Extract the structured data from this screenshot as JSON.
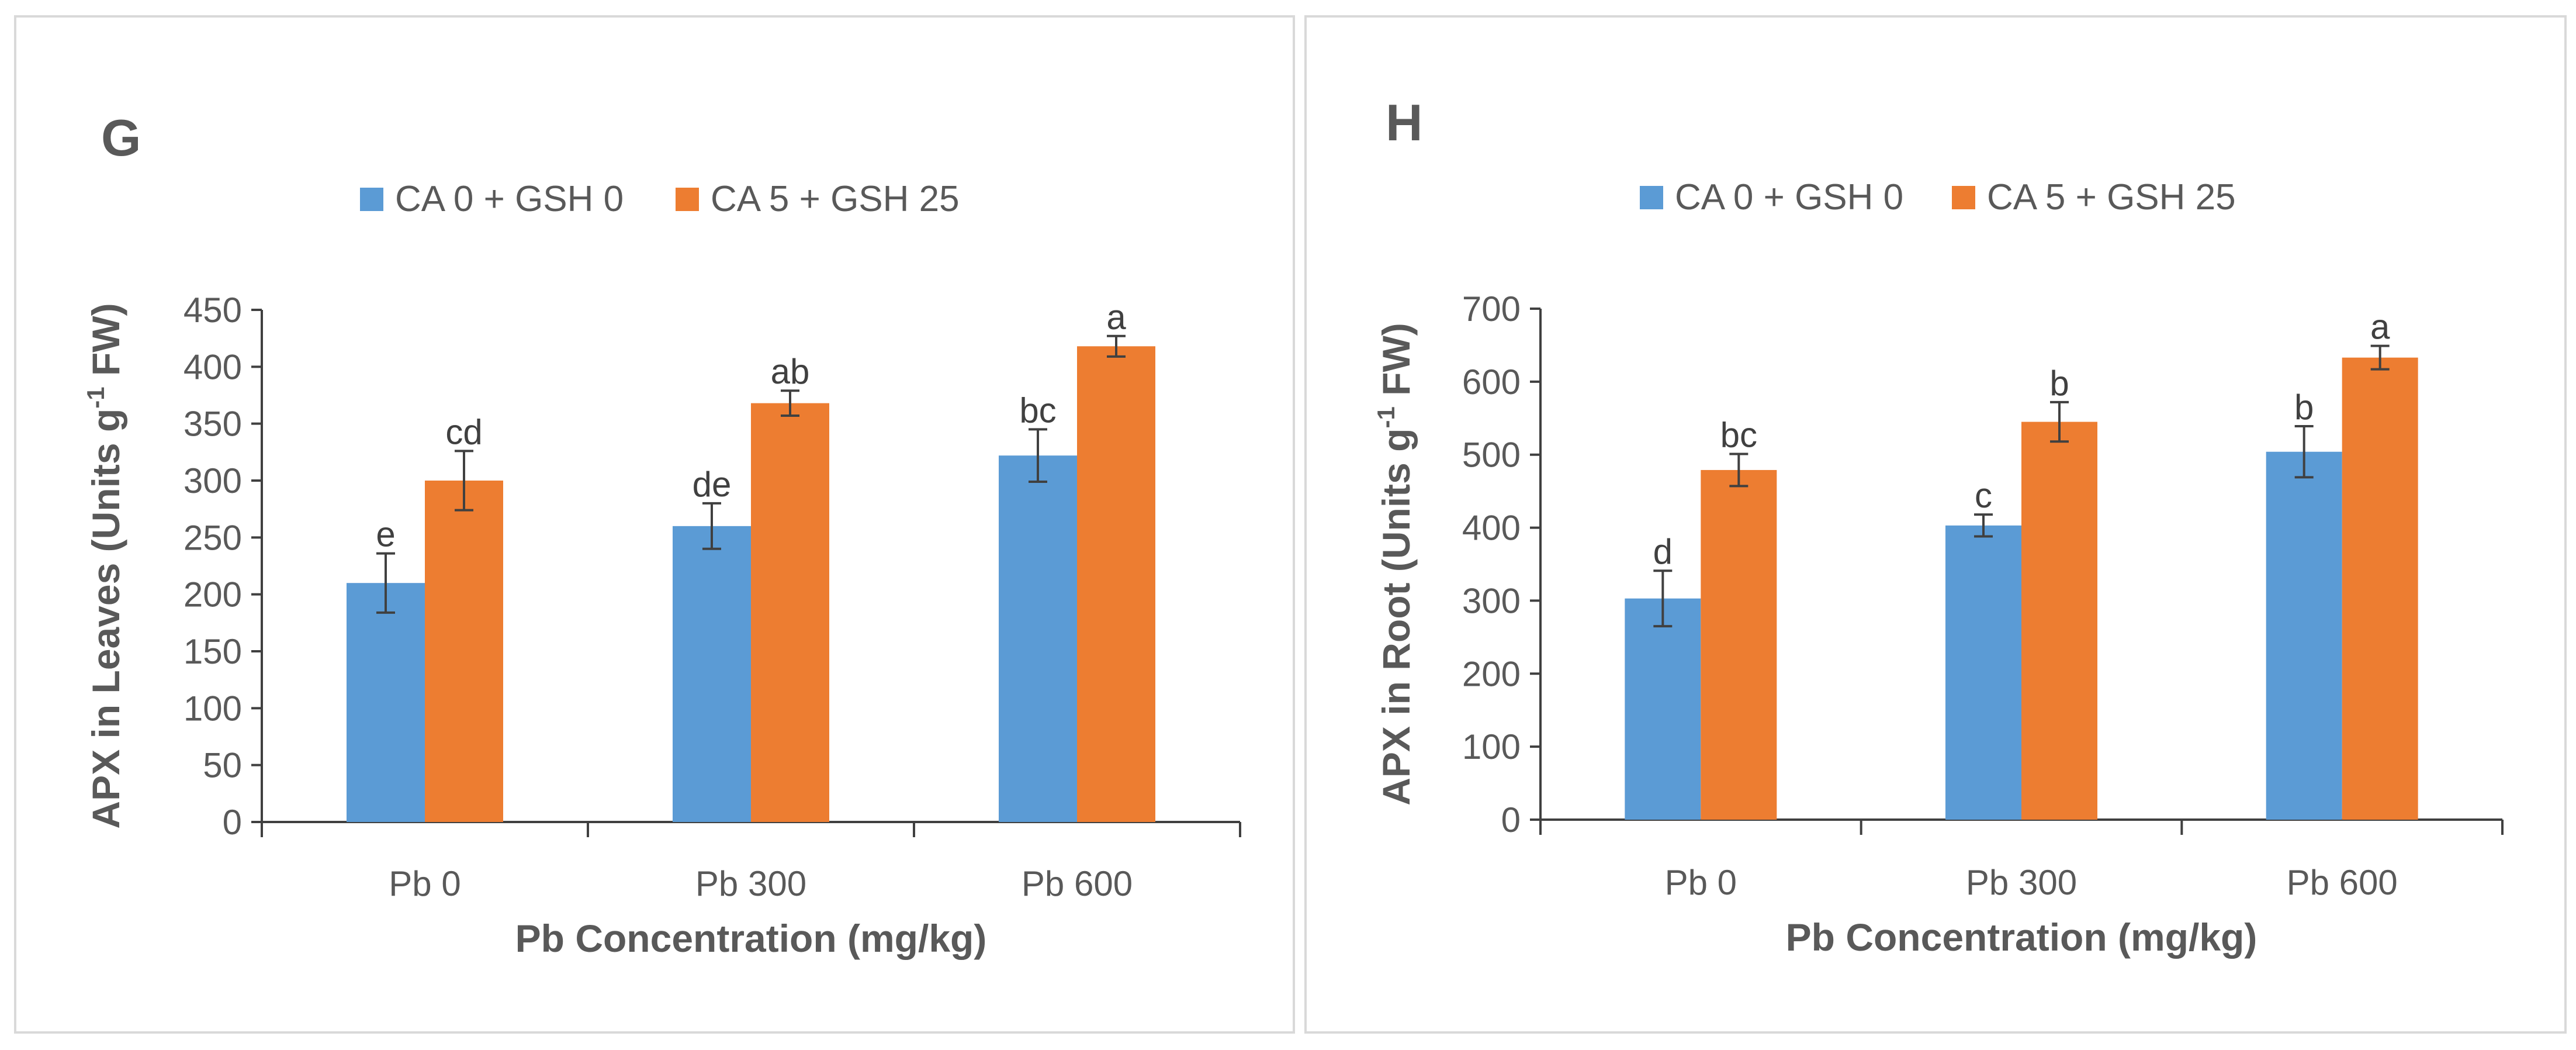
{
  "chart_data": [
    {
      "type": "bar",
      "panel_label": "G",
      "title": "",
      "categories": [
        "Pb 0",
        "Pb 300",
        "Pb 600"
      ],
      "series": [
        {
          "name": "CA 0 + GSH 0",
          "color": "#5b9bd5",
          "values": [
            210,
            260,
            322
          ],
          "errors": [
            26,
            20,
            23
          ],
          "letters": [
            "e",
            "de",
            "bc"
          ]
        },
        {
          "name": "CA 5 + GSH 25",
          "color": "#ed7d31",
          "values": [
            300,
            368,
            418
          ],
          "errors": [
            26,
            11,
            9
          ],
          "letters": [
            "cd",
            "ab",
            "a"
          ]
        }
      ],
      "xlabel": "Pb Concentration (mg/kg)",
      "ylabel_prefix": "APX in Leaves (Units g",
      "ylabel_sup": "-1",
      "ylabel_suffix": " FW)",
      "ylim": [
        0,
        450
      ],
      "yticks": [
        "0",
        "50",
        "100",
        "150",
        "200",
        "250",
        "300",
        "350",
        "400",
        "450"
      ],
      "legend_position": "top-center",
      "grid": false
    },
    {
      "type": "bar",
      "panel_label": "H",
      "title": "",
      "categories": [
        "Pb 0",
        "Pb 300",
        "Pb 600"
      ],
      "series": [
        {
          "name": "CA 0 + GSH 0",
          "color": "#5b9bd5",
          "values": [
            303,
            403,
            504
          ],
          "errors": [
            38,
            15,
            35
          ],
          "letters": [
            "d",
            "c",
            "b"
          ]
        },
        {
          "name": "CA 5 + GSH 25",
          "color": "#ed7d31",
          "values": [
            479,
            545,
            633
          ],
          "errors": [
            22,
            27,
            16
          ],
          "letters": [
            "bc",
            "b",
            "a"
          ]
        }
      ],
      "xlabel": "Pb Concentration (mg/kg)",
      "ylabel_prefix": "APX in Root (Units g",
      "ylabel_sup": "-1",
      "ylabel_suffix": " FW)",
      "ylim": [
        0,
        700
      ],
      "yticks": [
        "0",
        "100",
        "200",
        "300",
        "400",
        "500",
        "600",
        "700"
      ],
      "legend_position": "top-center",
      "grid": false
    }
  ]
}
